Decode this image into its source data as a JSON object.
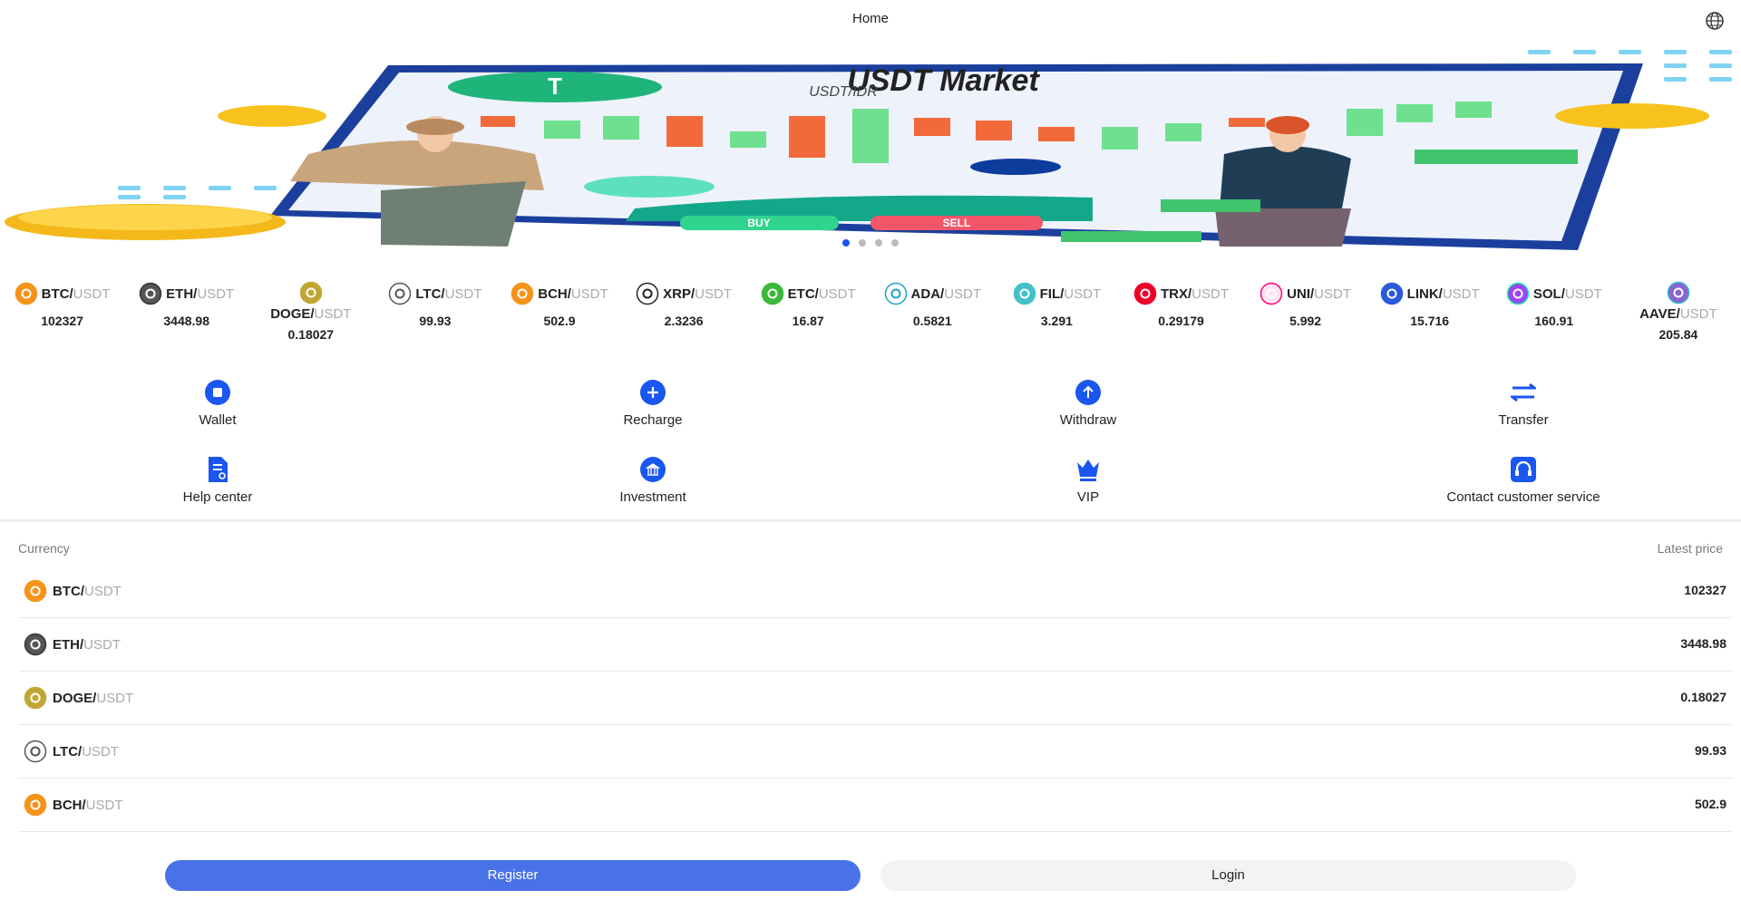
{
  "header": {
    "title": "Home"
  },
  "banner": {
    "title": "USDT Market",
    "subtitle": "USDT/IDR",
    "buy": "BUY",
    "sell": "SELL"
  },
  "tickers": [
    {
      "base": "BTC/",
      "quote": "USDT",
      "price": 102327
    },
    {
      "base": "ETH/",
      "quote": "USDT",
      "price": 3448.98
    },
    {
      "base": "DOGE/",
      "quote": "USDT",
      "price": 0.18027
    },
    {
      "base": "LTC/",
      "quote": "USDT",
      "price": 99.93
    },
    {
      "base": "BCH/",
      "quote": "USDT",
      "price": 502.9
    },
    {
      "base": "XRP/",
      "quote": "USDT",
      "price": 2.3236
    },
    {
      "base": "ETC/",
      "quote": "USDT",
      "price": 16.87
    },
    {
      "base": "ADA/",
      "quote": "USDT",
      "price": 0.5821
    },
    {
      "base": "FIL/",
      "quote": "USDT",
      "price": 3.291
    },
    {
      "base": "TRX/",
      "quote": "USDT",
      "price": 0.29179
    },
    {
      "base": "UNI/",
      "quote": "USDT",
      "price": 5.992
    },
    {
      "base": "LINK/",
      "quote": "USDT",
      "price": 15.716
    },
    {
      "base": "SOL/",
      "quote": "USDT",
      "price": 160.91
    },
    {
      "base": "AAVE/",
      "quote": "USDT",
      "price": 205.84
    }
  ],
  "actions": [
    "Wallet",
    "Recharge",
    "Withdraw",
    "Transfer",
    "Help center",
    "Investment",
    "VIP",
    "Contact customer service"
  ],
  "table": {
    "headers": [
      "Currency",
      "Latest price"
    ],
    "rows": [
      {
        "base": "BTC/",
        "quote": "USDT",
        "price": 102327
      },
      {
        "base": "ETH/",
        "quote": "USDT",
        "price": 3448.98
      },
      {
        "base": "DOGE/",
        "quote": "USDT",
        "price": 0.18027
      },
      {
        "base": "LTC/",
        "quote": "USDT",
        "price": 99.93
      },
      {
        "base": "BCH/",
        "quote": "USDT",
        "price": 502.9
      }
    ]
  },
  "footer": {
    "register": "Register",
    "login": "Login"
  }
}
